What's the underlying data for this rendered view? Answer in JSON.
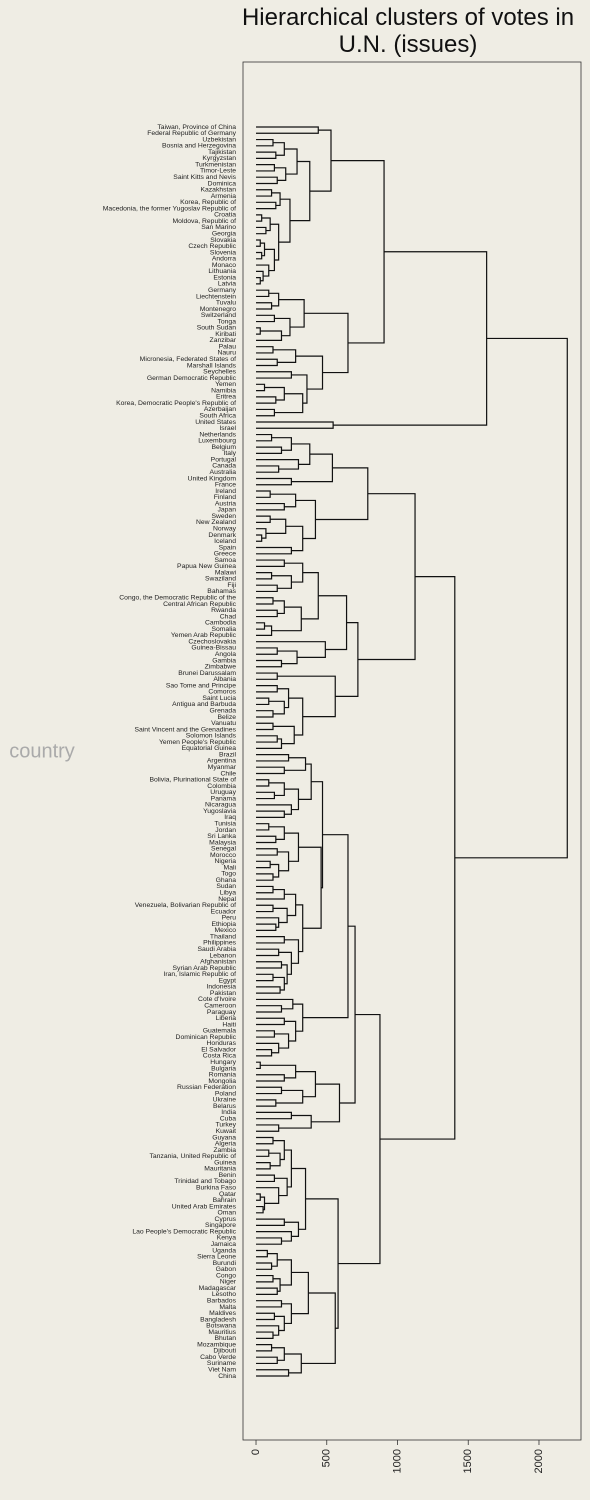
{
  "chart_data": {
    "type": "dendrogram",
    "title": "Hierarchical clusters of votes in U.N. (issues)",
    "ylabel": "country",
    "xlim": [
      -92,
      2297
    ],
    "xticks": [
      0,
      500,
      1000,
      1500,
      2000
    ],
    "color": "#111111",
    "tree": [
      2200,
      [
        1630,
        [
          905,
          [
            530,
            [
              440,
              "Taiwan, Province of China",
              "Federal Republic of Germany"
            ],
            [
              380,
              [
                290,
                [
                  200,
                  [
                    120,
                    "Uzbekistan",
                    "Bosnia and Herzegovina"
                  ],
                  [
                    140,
                    "Tajikistan",
                    "Kyrgyzstan"
                  ]
                ],
                [
                  210,
                  [
                    130,
                    "Turkmenistan",
                    "Timor-Leste"
                  ],
                  [
                    150,
                    "Saint Kitts and Nevis",
                    "Dominica"
                  ]
                ]
              ],
              [
                240,
                [
                  170,
                  [
                    110,
                    "Kazakhstan",
                    "Armenia"
                  ],
                  [
                    140,
                    "Korea, Republic of",
                    "Macedonia, the former Yugoslav Republic of"
                  ]
                ],
                [
                  160,
                  [
                    100,
                    [
                      40,
                      "Croatia",
                      "Moldova, Republic of"
                    ],
                    [
                      70,
                      "San Marino",
                      "Georgia"
                    ]
                  ],
                  [
                    130,
                    [
                      60,
                      [
                        30,
                        "Slovakia",
                        "Czech Republic"
                      ],
                      [
                        40,
                        "Slovenia",
                        "Andorra"
                      ]
                    ],
                    [
                      90,
                      "Monaco",
                      [
                        50,
                        "Lithuania",
                        [
                          30,
                          "Estonia",
                          "Latvia"
                        ]
                      ]
                    ]
                  ]
                ]
              ]
            ]
          ],
          [
            650,
            [
              340,
              [
                160,
                [
                  90,
                  "Germany",
                  "Liechtenstein"
                ],
                [
                  110,
                  "Tuvalu",
                  "Montenegro"
                ]
              ],
              [
                240,
                [
                  130,
                  "Switzerland",
                  "Tonga"
                ],
                [
                  180,
                  [
                    30,
                    "South Sudan",
                    "Kiribati"
                  ],
                  "Zanzibar"
                ]
              ]
            ],
            [
              470,
              [
                280,
                [
                  120,
                  "Palau",
                  "Nauru"
                ],
                [
                  150,
                  "Micronesia, Federated States of",
                  "Marshall Islands"
                ]
              ],
              [
                360,
                [
                  250,
                  "Seychelles",
                  "German Democratic Republic"
                ],
                [
                  330,
                  [
                    200,
                    [
                      60,
                      "Yemen",
                      "Namibia"
                    ],
                    [
                      140,
                      "Eritrea",
                      "Korea, Democratic People's Republic of"
                    ]
                  ],
                  [
                    130,
                    "Azerbaijan",
                    "South Africa"
                  ]
                ]
              ]
            ]
          ]
        ],
        [
          545,
          "United States",
          "Israel"
        ]
      ],
      [
        1405,
        [
          1124,
          [
            790,
            [
              540,
              [
                380,
                [
                  250,
                  [
                    110,
                    "Netherlands",
                    "Luxembourg"
                  ],
                  [
                    180,
                    "Belgium",
                    "Italy"
                  ]
                ],
                [
                  300,
                  "Portugal",
                  [
                    160,
                    "Canada",
                    "Australia"
                  ]
                ]
              ],
              [
                250,
                "United Kingdom",
                "France"
              ]
            ],
            [
              420,
              [
                280,
                [
                  100,
                  "Ireland",
                  "Finland"
                ],
                [
                  200,
                  "Austria",
                  "Japan"
                ]
              ],
              [
                330,
                [
                  210,
                  [
                    100,
                    "Sweden",
                    "New Zealand"
                  ],
                  [
                    70,
                    "Norway",
                    [
                      40,
                      "Denmark",
                      "Iceland"
                    ]
                  ]
                ],
                [
                  250,
                  "Spain",
                  "Greece"
                ]
              ]
            ]
          ],
          [
            720,
            [
              640,
              [
                440,
                [
                  330,
                  [
                    200,
                    "Samoa",
                    "Papua New Guinea"
                  ],
                  [
                    250,
                    [
                      110,
                      "Malawi",
                      "Swaziland"
                    ],
                    [
                      150,
                      "Fiji",
                      "Bahamas"
                    ]
                  ]
                ],
                [
                  320,
                  [
                    200,
                    [
                      120,
                      "Congo, the Democratic Republic of the",
                      "Central African Republic"
                    ],
                    [
                      150,
                      "Rwanda",
                      "Chad"
                    ]
                  ],
                  [
                    110,
                    [
                      60,
                      "Cambodia",
                      "Somalia"
                    ],
                    "Yemen Arab Republic"
                  ]
                ]
              ],
              [
                490,
                "Czechoslovakia",
                [
                  290,
                  [
                    150,
                    "Guinea-Bissau",
                    "Angola"
                  ],
                  [
                    180,
                    "Gambia",
                    "Zimbabwe"
                  ]
                ]
              ]
            ],
            [
              560,
              [
                150,
                "Brunei Darussalam",
                "Albania"
              ],
              [
                330,
                [
                  230,
                  [
                    150,
                    "Sao Tome and Principe",
                    "Comoros"
                  ],
                  [
                    200,
                    [
                      90,
                      "Saint Lucia",
                      "Antigua and Barbuda"
                    ],
                    [
                      120,
                      "Grenada",
                      "Belize"
                    ]
                  ]
                ],
                [
                  270,
                  [
                    120,
                    "Vanuatu",
                    "Saint Vincent and the Grenadines"
                  ],
                  [
                    180,
                    [
                      150,
                      "Solomon Islands",
                      "Yemen People's Republic"
                    ],
                    "Equatorial Guinea"
                  ]
                ]
              ]
            ]
          ]
        ],
        [
          876,
          [
            700,
            [
              650,
              [
                470,
                [
                  390,
                  [
                    350,
                    [
                      230,
                      "Brazil",
                      "Argentina"
                    ],
                    [
                      200,
                      "Myanmar",
                      "Chile"
                    ]
                  ],
                  [
                    300,
                    [
                      200,
                      [
                        90,
                        "Bolivia, Plurinational State of",
                        "Colombia"
                      ],
                      [
                        130,
                        "Uruguay",
                        "Panama"
                      ]
                    ],
                    [
                      250,
                      "Nicaragua",
                      [
                        200,
                        "Yugoslavia",
                        "Iraq"
                      ]
                    ]
                  ]
                ],
                [
                  460,
                  [
                    300,
                    [
                      200,
                      [
                        90,
                        "Tunisia",
                        "Jordan"
                      ],
                      [
                        140,
                        "Sri Lanka",
                        "Malaysia"
                      ]
                    ],
                    [
                      230,
                      [
                        150,
                        "Senegal",
                        "Morocco"
                      ],
                      [
                        160,
                        [
                          100,
                          "Nigeria",
                          "Mali"
                        ],
                        [
                          120,
                          "Togo",
                          "Ghana"
                        ]
                      ]
                    ]
                  ],
                  [
                    330,
                    [
                      280,
                      [
                        200,
                        [
                          120,
                          "Sudan",
                          "Libya"
                        ],
                        "Nepal"
                      ],
                      [
                        220,
                        [
                          120,
                          "Venezuela, Bolivarian Republic of",
                          "Ecuador"
                        ],
                        [
                          160,
                          "Peru",
                          [
                            140,
                            "Ethiopia",
                            "Mexico"
                          ]
                        ]
                      ]
                    ],
                    [
                      300,
                      [
                        200,
                        "Thailand",
                        "Philippines"
                      ],
                      [
                        250,
                        [
                          160,
                          "Saudi Arabia",
                          "Lebanon"
                        ],
                        [
                          220,
                          [
                            180,
                            "Afghanistan",
                            "Syrian Arab Republic"
                          ],
                          [
                            200,
                            [
                              120,
                              "Iran, Islamic Republic of",
                              "Egypt"
                            ],
                            [
                              170,
                              "Indonesia",
                              "Pakistan"
                            ]
                          ]
                        ]
                      ]
                    ]
                  ]
                ]
              ],
              [
                330,
                [
                  260,
                  "Cote d'Ivoire",
                  [
                    180,
                    "Cameroon",
                    "Paraguay"
                  ]
                ],
                [
                  280,
                  [
                    200,
                    "Liberia",
                    "Haiti"
                  ],
                  [
                    230,
                    [
                      130,
                      "Guatemala",
                      "Dominican Republic"
                    ],
                    [
                      160,
                      "Honduras",
                      [
                        110,
                        "El Salvador",
                        "Costa Rica"
                      ]
                    ]
                  ]
                ]
              ]
            ],
            [
              590,
              [
                420,
                [
                  280,
                  [
                    30,
                    "Hungary",
                    "Bulgaria"
                  ],
                  [
                    200,
                    "Romania",
                    "Mongolia"
                  ]
                ],
                [
                  330,
                  [
                    180,
                    "Russian Federation",
                    "Poland"
                  ],
                  [
                    140,
                    "Ukraine",
                    "Belarus"
                  ]
                ]
              ],
              [
                390,
                [
                  250,
                  "India",
                  "Cuba"
                ],
                [
                  160,
                  "Turkey",
                  "Kuwait"
                ]
              ]
            ]
          ],
          [
            580,
            [
              350,
              [
                250,
                [
                  200,
                  [
                    120,
                    "Guyana",
                    "Algeria"
                  ],
                  [
                    170,
                    [
                      90,
                      "Zambia",
                      "Tanzania, United Republic of"
                    ],
                    [
                      100,
                      "Guinea",
                      "Mauritania"
                    ]
                  ]
                ],
                [
                  220,
                  [
                    130,
                    "Benin",
                    "Trinidad and Tobago"
                  ],
                  [
                    160,
                    "Burkina Faso",
                    [
                      60,
                      [
                        30,
                        "Qatar",
                        "Bahrain"
                      ],
                      [
                        50,
                        "United Arab Emirates",
                        "Oman"
                      ]
                    ]
                  ]
                ]
              ],
              [
                300,
                [
                  200,
                  "Cyprus",
                  "Singapore"
                ],
                [
                  250,
                  "Lao People's Democratic Republic",
                  [
                    180,
                    "Kenya",
                    "Jamaica"
                  ]
                ]
              ]
            ],
            [
              560,
              [
                370,
                [
                  250,
                  [
                    150,
                    [
                      80,
                      "Uganda",
                      "Sierra Leone"
                    ],
                    [
                      110,
                      "Burundi",
                      "Gabon"
                    ]
                  ],
                  [
                    170,
                    [
                      120,
                      "Congo",
                      "Niger"
                    ],
                    [
                      150,
                      "Madagascar",
                      "Lesotho"
                    ]
                  ]
                ],
                [
                  250,
                  [
                    180,
                    "Barbados",
                    "Malta"
                  ],
                  [
                    200,
                    [
                      130,
                      "Maldives",
                      "Bangladesh"
                    ],
                    [
                      160,
                      "Botswana",
                      [
                        120,
                        "Mauritius",
                        "Bhutan"
                      ]
                    ]
                  ]
                ]
              ],
              [
                320,
                [
                  200,
                  [
                    110,
                    "Mozambique",
                    "Djibouti"
                  ],
                  [
                    150,
                    "Cabo Verde",
                    "Suriname"
                  ]
                ],
                [
                  230,
                  "Viet Nam",
                  "China"
                ]
              ]
            ]
          ]
        ]
      ]
    ]
  }
}
